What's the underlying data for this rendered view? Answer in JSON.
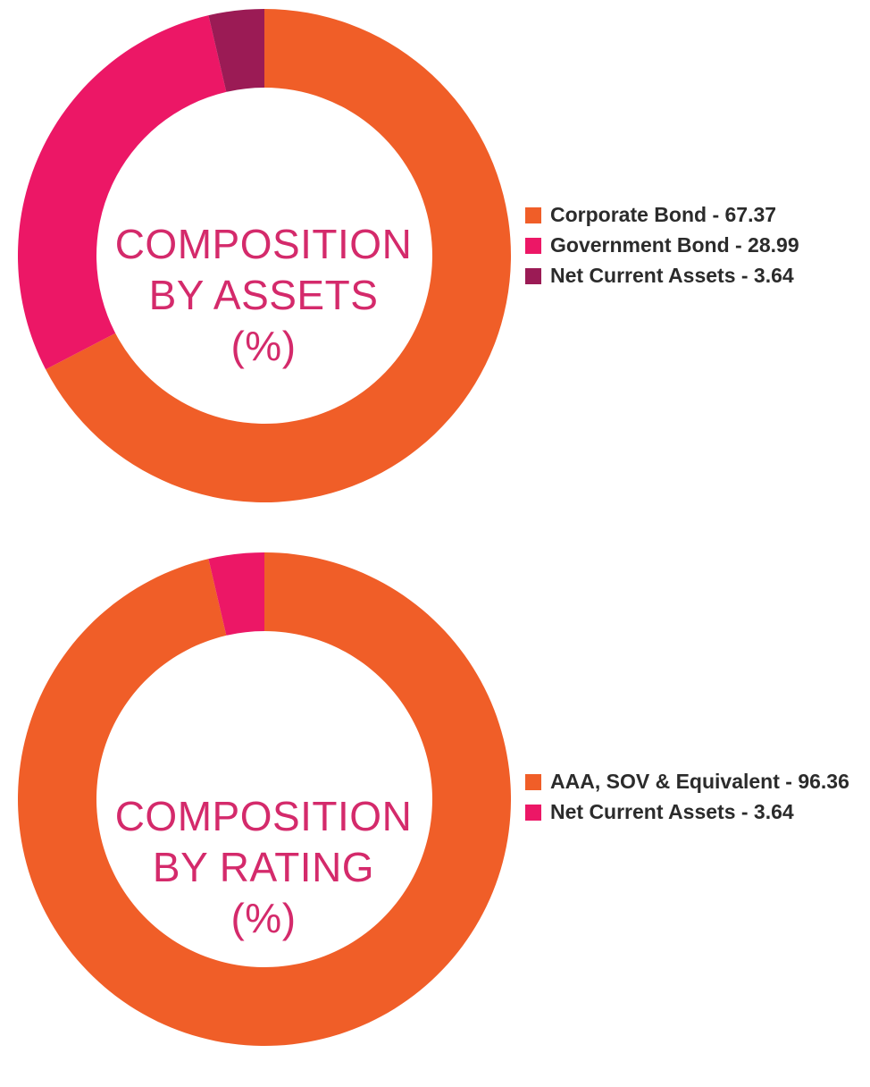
{
  "colors": {
    "orange": "#f05e28",
    "pink": "#ec1766",
    "maroon": "#9b1b55",
    "title_pink": "#d42a6b",
    "legend_text": "#2b2b2b"
  },
  "chart_data": [
    {
      "type": "pie",
      "variant": "donut",
      "title_lines": [
        "COMPOSITION",
        "BY ASSETS",
        "(%)"
      ],
      "legend_placement": "right",
      "series": [
        {
          "name": "Corporate Bond",
          "value": 67.37,
          "color": "#f05e28",
          "label": "Corporate Bond - 67.37"
        },
        {
          "name": "Government Bond",
          "value": 28.99,
          "color": "#ec1766",
          "label": "Government Bond - 28.99"
        },
        {
          "name": "Net Current Assets",
          "value": 3.64,
          "color": "#9b1b55",
          "label": "Net Current Assets - 3.64"
        }
      ]
    },
    {
      "type": "pie",
      "variant": "donut",
      "title_lines": [
        "COMPOSITION",
        "BY RATING",
        "(%)"
      ],
      "legend_placement": "right",
      "series": [
        {
          "name": "AAA, SOV & Equivalent",
          "value": 96.36,
          "color": "#f05e28",
          "label": "AAA, SOV & Equivalent - 96.36"
        },
        {
          "name": "Net Current Assets",
          "value": 3.64,
          "color": "#ec1766",
          "label": "Net Current Assets - 3.64"
        }
      ]
    }
  ]
}
